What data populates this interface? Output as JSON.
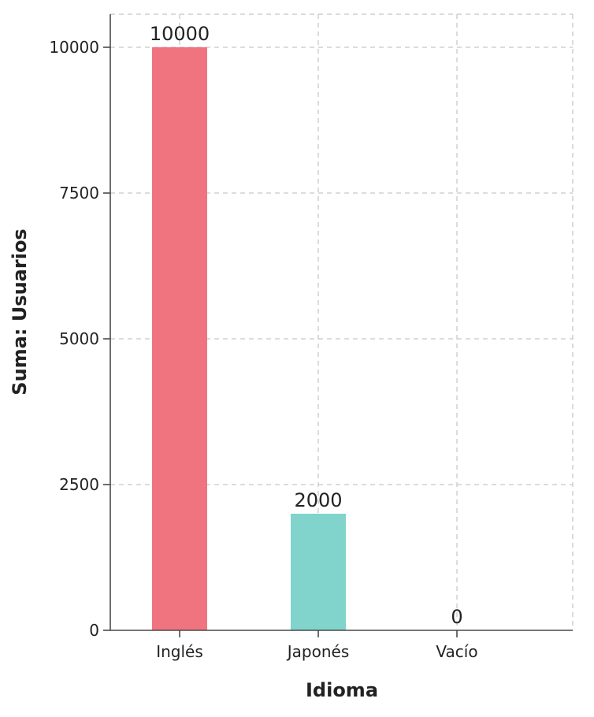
{
  "chart_data": {
    "type": "bar",
    "categories": [
      "Inglés",
      "Japonés",
      "Vacío"
    ],
    "values": [
      10000,
      2000,
      0
    ],
    "data_labels": [
      "10000",
      "2000",
      "0"
    ],
    "colors": [
      "#f07380",
      "#80d4cc",
      "#80d4cc"
    ],
    "title": "",
    "xlabel": "Idioma",
    "ylabel": "Suma: Usuarios",
    "ylim": [
      0,
      10000
    ],
    "yticks": [
      0,
      2500,
      5000,
      7500,
      10000
    ],
    "ytick_labels": [
      "0",
      "2500",
      "5000",
      "7500",
      "10000"
    ],
    "grid": true,
    "legend": "none"
  }
}
